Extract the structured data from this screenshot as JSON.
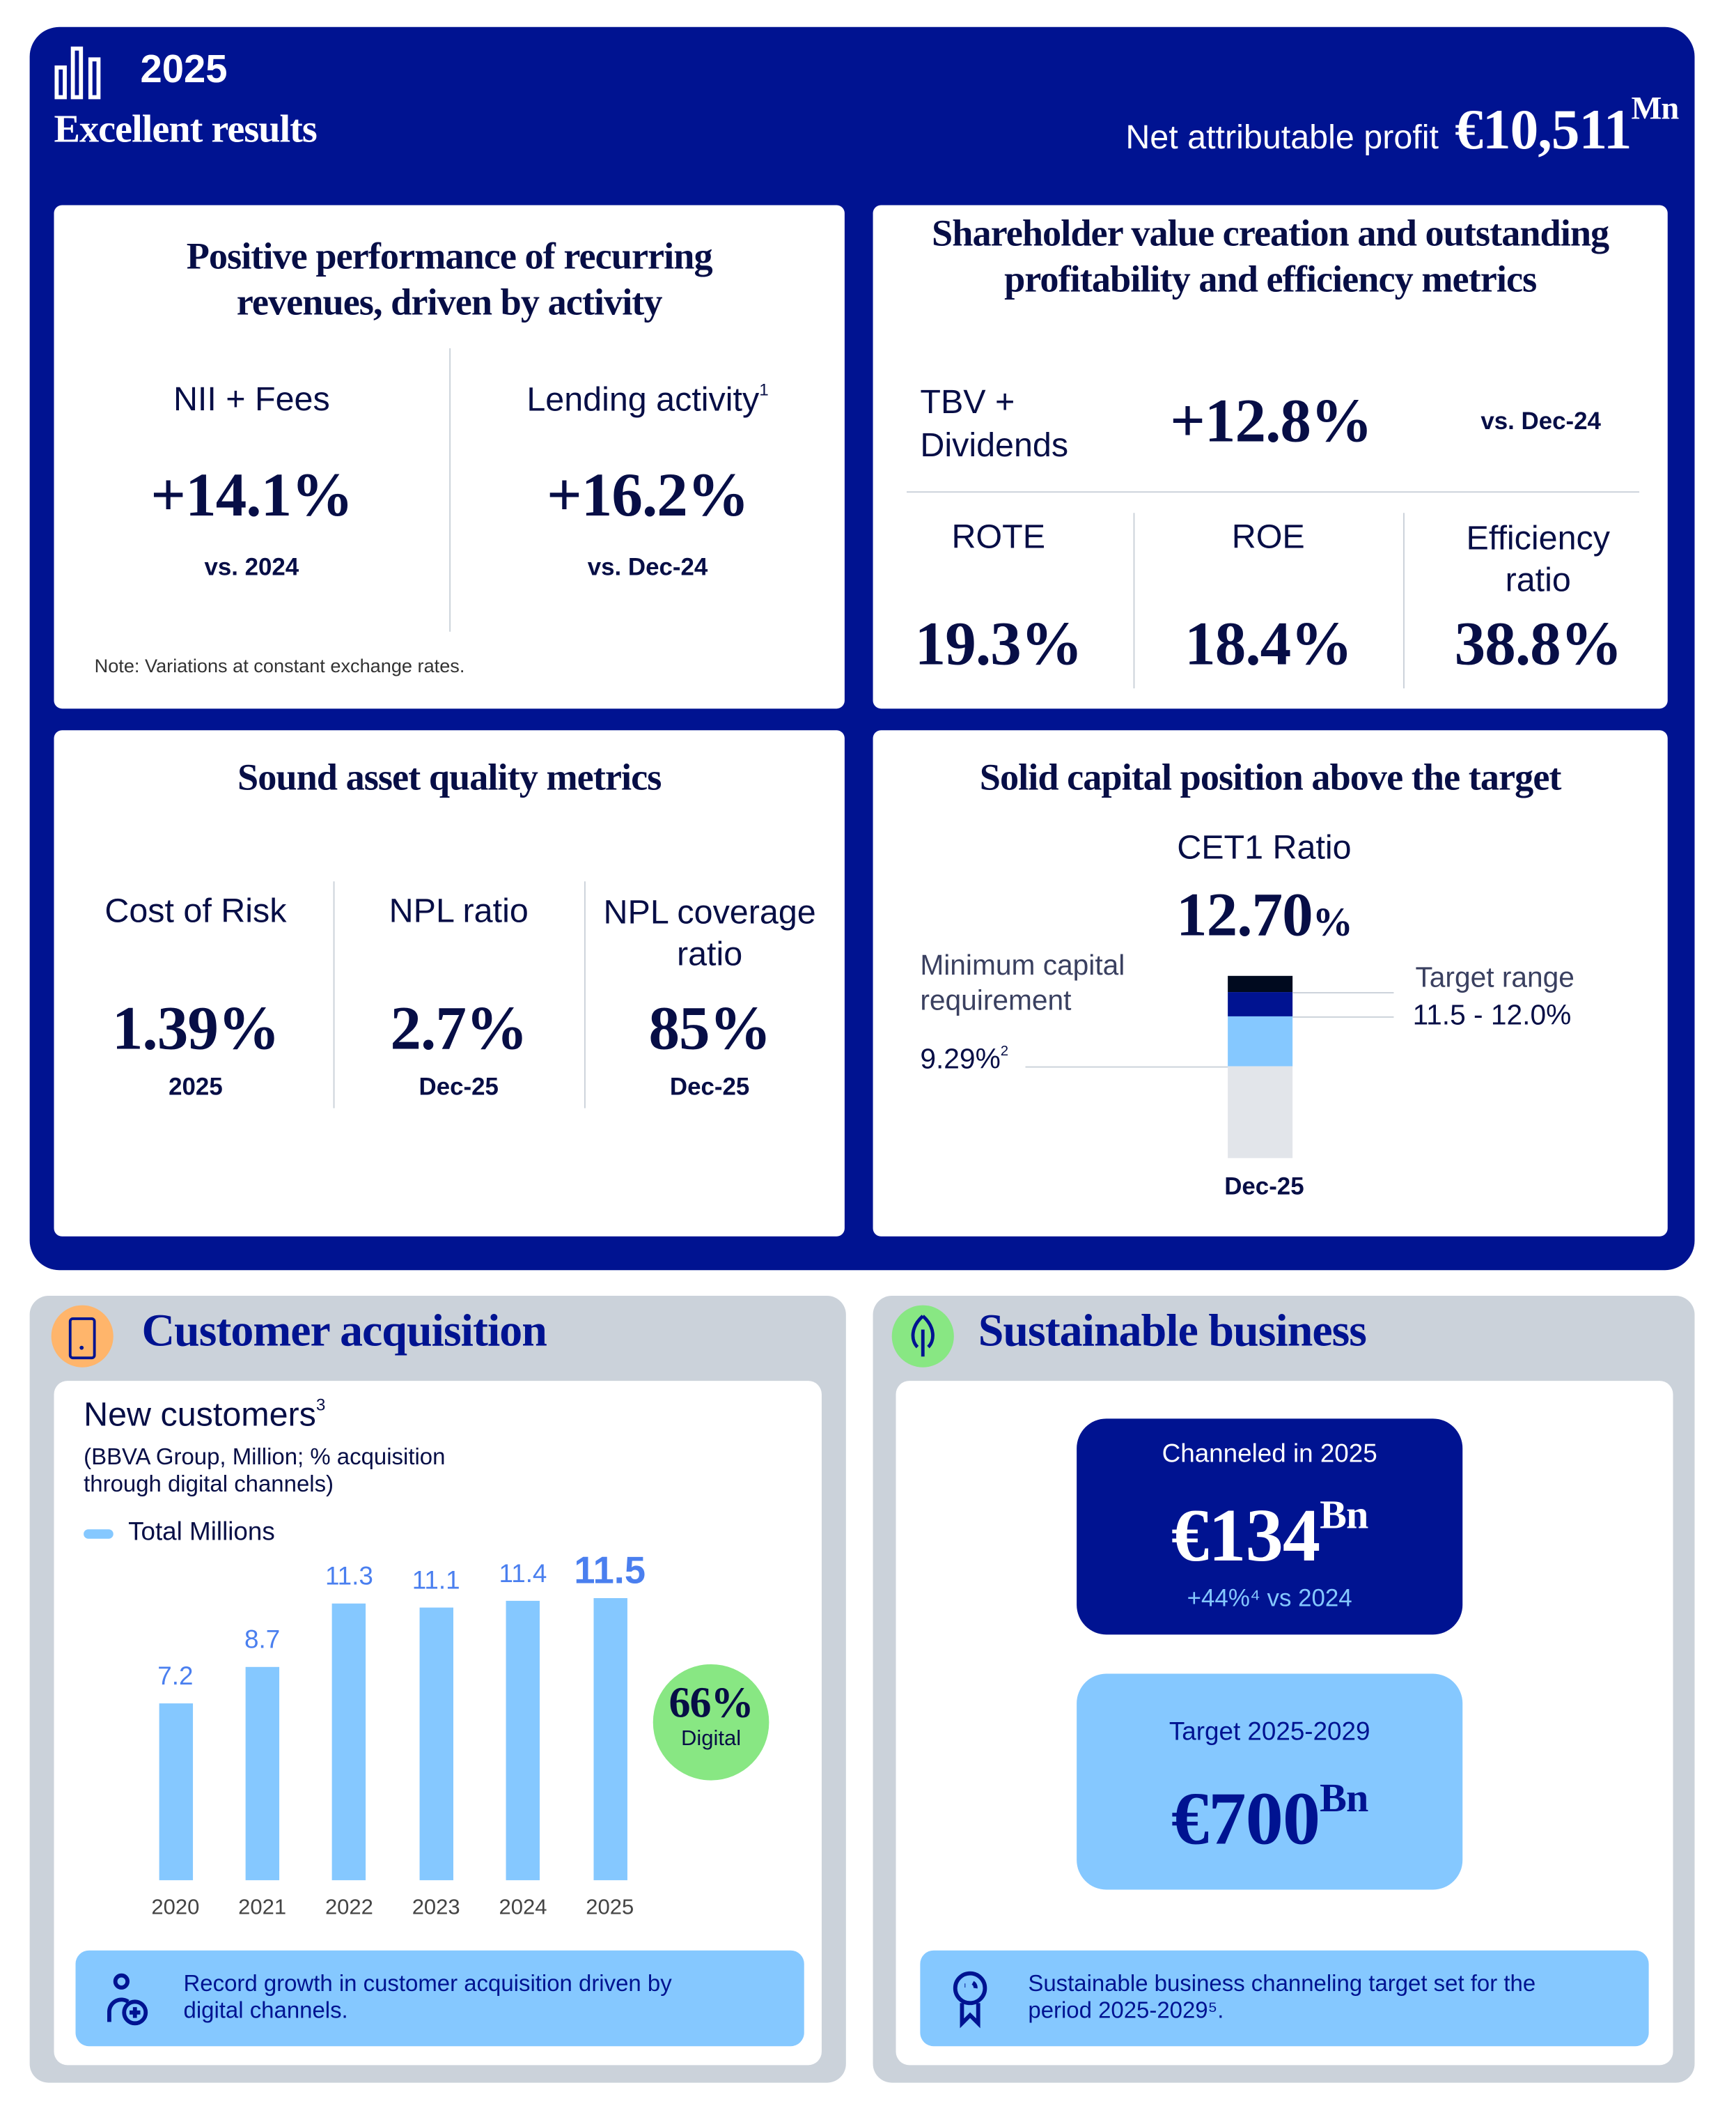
{
  "header": {
    "year": "2025",
    "title": "Excellent results",
    "profit_label": "Net attributable profit",
    "profit_value": "€10,511",
    "profit_unit": "Mn",
    "logo_icon": "bar-chart-icon"
  },
  "colors": {
    "navy": "#001391",
    "dark_text": "#070e46",
    "light_blue": "#85c8ff",
    "grey_panel": "#cbd2da",
    "orange": "#ffb56b",
    "green": "#88e783",
    "bar_label_blue": "#4a7fef"
  },
  "recurring": {
    "title": "Positive performance of recurring revenues, driven by activity",
    "metrics": [
      {
        "label": "NII + Fees",
        "value": "+14.1%",
        "sub": "vs. 2024"
      },
      {
        "label": "Lending activity",
        "sup": "1",
        "value": "+16.2%",
        "sub": "vs. Dec-24"
      }
    ],
    "note": "Note: Variations at constant exchange rates."
  },
  "shareholder": {
    "title": "Shareholder value creation and outstanding profitability and efficiency metrics",
    "tbv": {
      "label": "TBV + Dividends",
      "value": "+12.8%",
      "sub": "vs. Dec-24"
    },
    "metrics": [
      {
        "label": "ROTE",
        "value": "19.3%"
      },
      {
        "label": "ROE",
        "value": "18.4%"
      },
      {
        "label": "Efficiency ratio",
        "value": "38.8%"
      }
    ]
  },
  "asset_quality": {
    "title": "Sound asset quality metrics",
    "metrics": [
      {
        "label": "Cost of Risk",
        "value": "1.39%",
        "sub": "2025"
      },
      {
        "label": "NPL ratio",
        "value": "2.7%",
        "sub": "Dec-25"
      },
      {
        "label": "NPL coverage ratio",
        "value": "85%",
        "sub": "Dec-25"
      }
    ]
  },
  "capital": {
    "title": "Solid capital position above the target",
    "cet1_label": "CET1 Ratio",
    "cet1_value": "12.70",
    "cet1_unit": "%",
    "min_label": "Minimum capital requirement",
    "min_value": "9.29%",
    "min_sup": "2",
    "target_label": "Target range",
    "target_value": "11.5 - 12.0%",
    "period": "Dec-25"
  },
  "customer": {
    "section_title": "Customer acquisition",
    "section_icon": "smartphone-icon",
    "chart_title": "New customers",
    "chart_title_sup": "3",
    "chart_subtitle": "(BBVA Group, Million; % acquisition through digital channels)",
    "digital_value": "66%",
    "digital_label": "Digital",
    "footer_icon": "user-add-icon",
    "footer_text": "Record growth in customer acquisition driven by digital channels."
  },
  "chart_data": {
    "type": "bar",
    "categories": [
      "2020",
      "2021",
      "2022",
      "2023",
      "2024",
      "2025"
    ],
    "series": [
      {
        "name": "Total Millions",
        "values": [
          7.2,
          8.7,
          11.3,
          11.1,
          11.4,
          11.5
        ]
      }
    ],
    "ylim": [
      0,
      11.5
    ],
    "data_labels": [
      "7.2",
      "8.7",
      "11.3",
      "11.1",
      "11.4",
      "11.5"
    ],
    "grid": false,
    "legend": "top-left",
    "color": "#85c8ff"
  },
  "sustainable": {
    "section_title": "Sustainable business",
    "section_icon": "leaf-icon",
    "channeled_label": "Channeled in 2025",
    "channeled_value": "€134",
    "channeled_unit": "Bn",
    "channeled_growth": "+44%⁴ vs 2024",
    "target_label": "Target 2025-2029",
    "target_value": "€700",
    "target_unit": "Bn",
    "footer_icon": "award-icon",
    "footer_text": "Sustainable business channeling target set for the period 2025-2029⁵."
  }
}
